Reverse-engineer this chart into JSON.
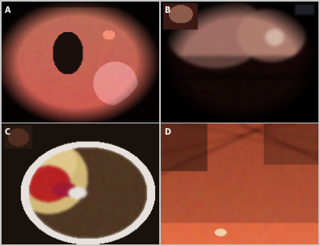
{
  "labels": [
    "A",
    "B",
    "C",
    "D"
  ],
  "label_color": "white",
  "label_fontsize": 7,
  "label_fontweight": "bold",
  "border_color": [
    220,
    220,
    220
  ],
  "figure_bg": "#dcdcdc",
  "panel_border": 2
}
